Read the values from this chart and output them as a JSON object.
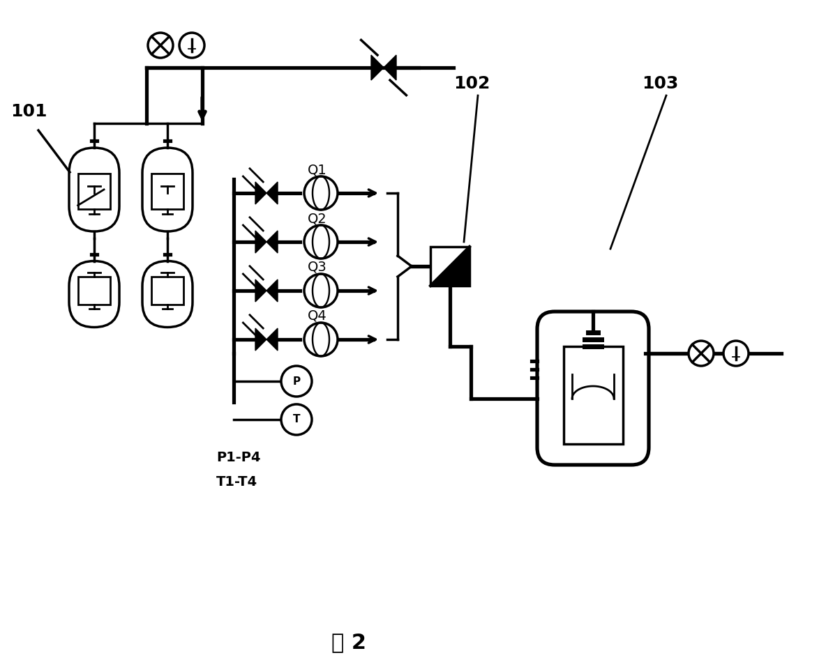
{
  "title": "图 2",
  "label_101": "101",
  "label_102": "102",
  "label_103": "103",
  "label_P1P4": "P1-P4",
  "label_T1T4": "T1-T4",
  "flow_labels": [
    "Q1",
    "Q2",
    "Q3",
    "Q4"
  ],
  "bg_color": "#ffffff",
  "line_color": "#000000",
  "linewidth": 2.5,
  "tank_color": "#ffffff",
  "font_size_large": 18,
  "font_size_medium": 14,
  "font_size_small": 12
}
